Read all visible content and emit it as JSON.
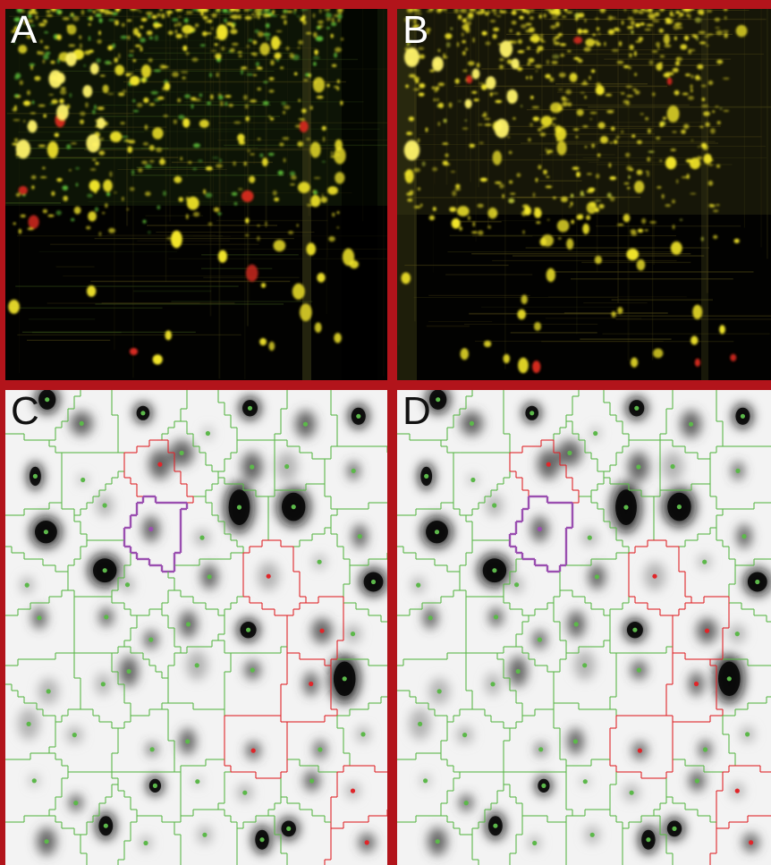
{
  "figure": {
    "border_color": "#b2141b",
    "panels": [
      {
        "id": "A",
        "label": "A",
        "kind": "fluorescence-gel"
      },
      {
        "id": "B",
        "label": "B",
        "kind": "fluorescence-gel"
      },
      {
        "id": "C",
        "label": "C",
        "kind": "segmented-grayscale-gel"
      },
      {
        "id": "D",
        "label": "D",
        "kind": "segmented-grayscale-gel"
      }
    ],
    "colors": {
      "gel_background": "#020201",
      "spot_yellow": "#f2e52a",
      "spot_green": "#5fbf3a",
      "spot_red": "#d92a1f",
      "boundary_green": "#5cb84a",
      "boundary_red": "#e0262a",
      "boundary_purple": "#9a4fb0",
      "grayscale_background": "#f3f3f3",
      "grayscale_spot": "#0a0a0a"
    }
  }
}
